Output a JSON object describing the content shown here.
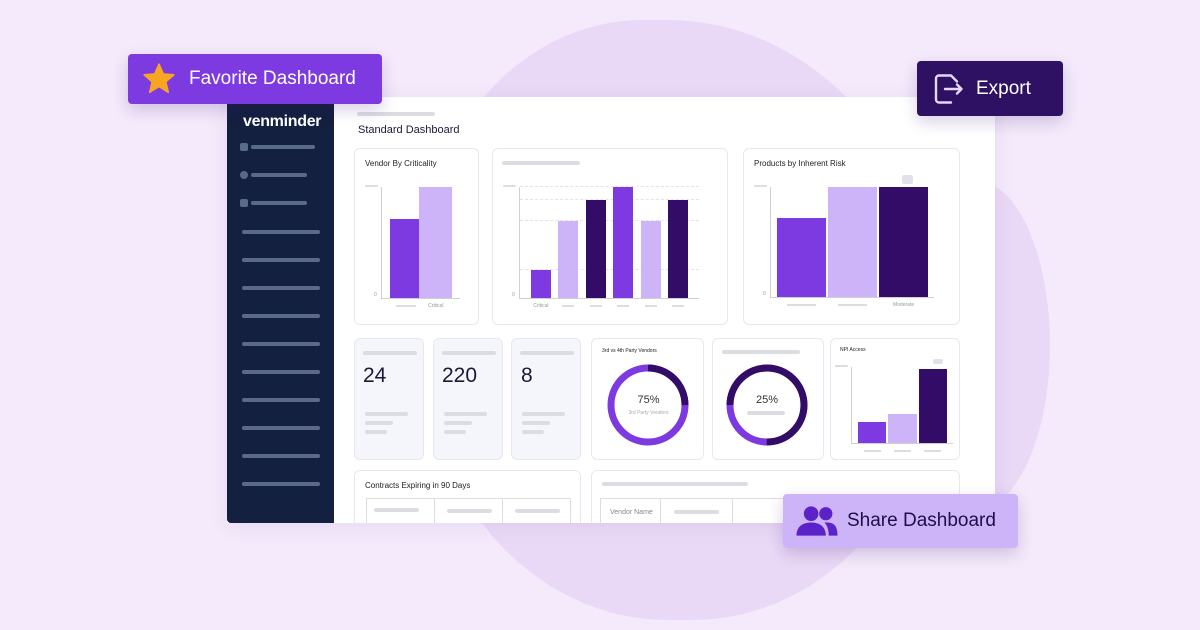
{
  "colors": {
    "bar_primary": "#7c3ae0",
    "bar_light": "#cdb4f8",
    "bar_dark": "#320c66",
    "sidebar": "#13203f",
    "background": "#f4eafb"
  },
  "brand": "venminder",
  "page_title": "Standard Dashboard",
  "favorite_button": {
    "label": "Favorite Dashboard",
    "icon": "star-icon"
  },
  "export_button": {
    "label": "Export",
    "icon": "export-icon"
  },
  "share_button": {
    "label": "Share Dashboard",
    "icon": "users-icon"
  },
  "stats": [
    {
      "value": "24"
    },
    {
      "value": "220"
    },
    {
      "value": "8"
    }
  ],
  "donuts": [
    {
      "title": "3rd vs 4th Party Vendors",
      "percent_label": "75%",
      "sub_label": "3rd Party Vendors",
      "value": 75
    },
    {
      "title": "",
      "percent_label": "25%",
      "value": 25
    }
  ],
  "contracts": {
    "title": "Contracts Expiring in 90 Days"
  },
  "vendor_table": {
    "first_header": "Vendor Name"
  },
  "chart_data": [
    {
      "type": "bar",
      "title": "Vendor By Criticality",
      "categories": [
        "",
        "Critical"
      ],
      "values": [
        0.71,
        1.0
      ],
      "colors": [
        "#7c3ae0",
        "#cdb4f8"
      ],
      "ylim": [
        0,
        1
      ],
      "ytick_bottom": "0"
    },
    {
      "type": "bar",
      "title": "",
      "categories": [
        "Critical",
        "",
        "",
        "",
        "",
        ""
      ],
      "values": [
        0.25,
        0.69,
        0.88,
        1.0,
        0.69,
        0.88
      ],
      "colors": [
        "#7c3ae0",
        "#cdb4f8",
        "#320c66",
        "#7c3ae0",
        "#cdb4f8",
        "#320c66"
      ],
      "ylim": [
        0,
        1
      ],
      "grid": true,
      "ytick_bottom": "0"
    },
    {
      "type": "bar",
      "title": "Products by Inherent Risk",
      "categories": [
        "",
        "",
        "Moderate"
      ],
      "values": [
        0.72,
        1.0,
        1.0
      ],
      "colors": [
        "#7c3ae0",
        "#cdb4f8",
        "#320c66"
      ],
      "ylim": [
        0,
        1
      ],
      "ytick_bottom": "0"
    },
    {
      "type": "bar",
      "title": "NPI Access",
      "categories": [
        "",
        "",
        ""
      ],
      "values": [
        0.27,
        0.38,
        0.97
      ],
      "colors": [
        "#7c3ae0",
        "#cdb4f8",
        "#320c66"
      ],
      "ylim": [
        0,
        1
      ]
    }
  ]
}
